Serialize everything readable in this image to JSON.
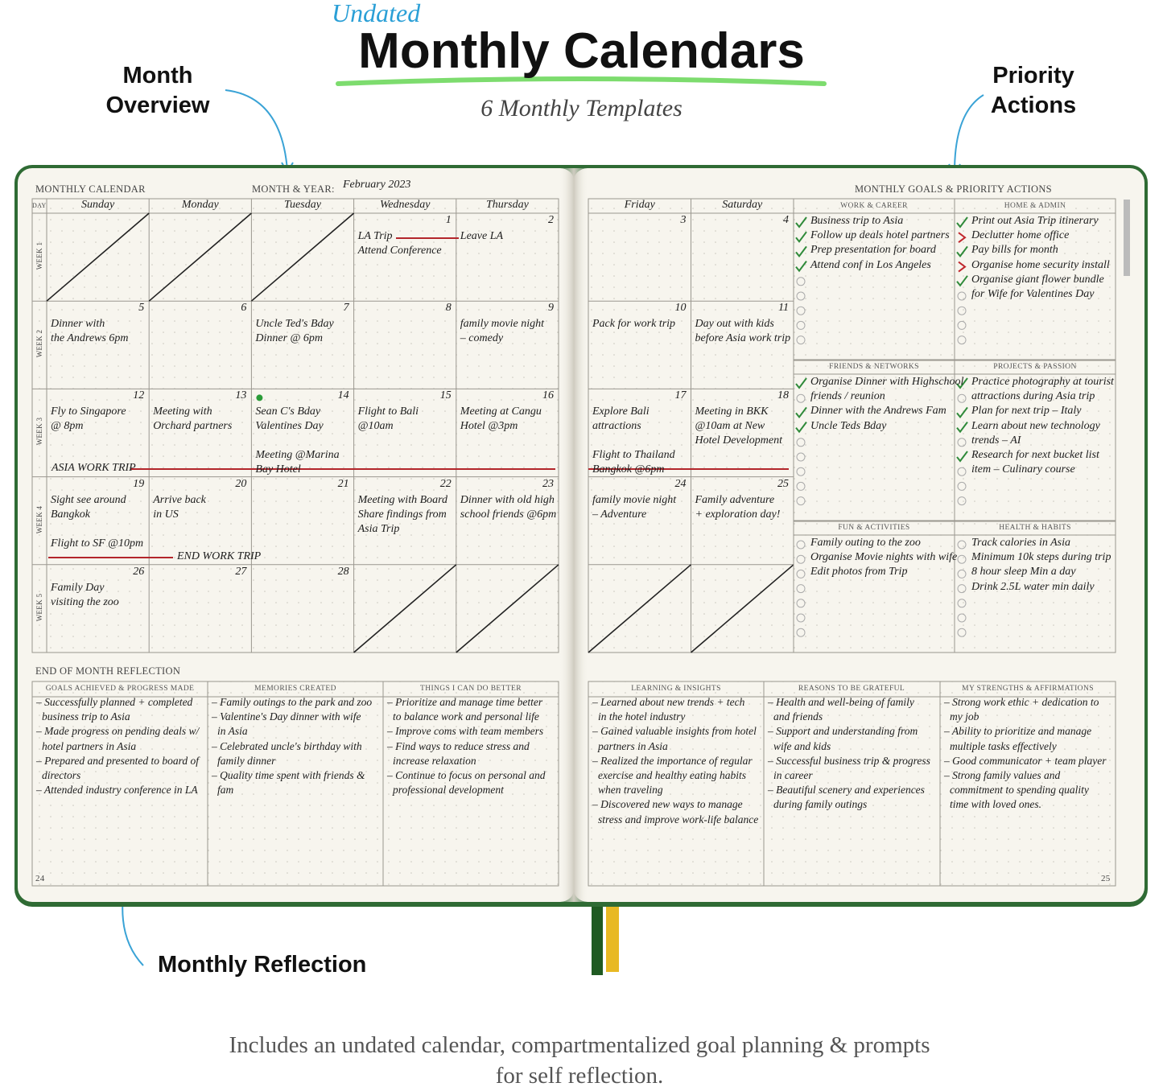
{
  "header": {
    "badge": "Undated",
    "title": "Monthly Calendars",
    "subtitle": "6 Monthly Templates"
  },
  "callouts": {
    "left": "Month Overview",
    "right": "Priority Actions",
    "bottom": "Monthly Reflection"
  },
  "footer": "Includes an undated calendar, compartmentalized goal planning & prompts for self reflection.",
  "left_page": {
    "label": "MONTHLY CALENDAR",
    "month_label": "MONTH & YEAR:",
    "month": "February 2023",
    "page_number": "24"
  },
  "right_page": {
    "label": "MONTHLY GOALS & PRIORITY ACTIONS",
    "page_number": "25"
  },
  "calendar": {
    "day_label": "DAY",
    "days": [
      "Sunday",
      "Monday",
      "Tuesday",
      "Wednesday",
      "Thursday",
      "Friday",
      "Saturday"
    ],
    "weeks": [
      {
        "label": "WEEK 1",
        "cells": [
          {
            "day": null,
            "notes": []
          },
          {
            "day": null,
            "notes": []
          },
          {
            "day": null,
            "notes": []
          },
          {
            "day": 1,
            "notes": [
              [
                "LA Trip",
                "Attend Conference"
              ]
            ]
          },
          {
            "day": 2,
            "notes": [
              [
                "Leave LA"
              ]
            ]
          },
          {
            "day": 3,
            "notes": []
          },
          {
            "day": 4,
            "notes": []
          }
        ]
      },
      {
        "label": "WEEK 2",
        "cells": [
          {
            "day": 5,
            "notes": [
              [
                "Dinner with",
                "the Andrews 6pm"
              ]
            ]
          },
          {
            "day": 6,
            "notes": []
          },
          {
            "day": 7,
            "notes": [
              [
                "Uncle Ted's Bday",
                "Dinner @ 6pm"
              ]
            ]
          },
          {
            "day": 8,
            "notes": []
          },
          {
            "day": 9,
            "notes": [
              [
                "family movie night",
                "– comedy"
              ]
            ]
          },
          {
            "day": 10,
            "notes": [
              [
                "Pack for work trip"
              ]
            ]
          },
          {
            "day": 11,
            "notes": [
              [
                "Day out with kids",
                "before Asia work trip"
              ]
            ]
          }
        ]
      },
      {
        "label": "WEEK 3",
        "cells": [
          {
            "day": 12,
            "notes": [
              [
                "Fly to Singapore",
                "@ 8pm"
              ]
            ]
          },
          {
            "day": 13,
            "notes": [
              [
                "Meeting with",
                "Orchard partners"
              ]
            ]
          },
          {
            "day": 14,
            "notes": [
              [
                "Sean C's Bday",
                "Valentines Day"
              ],
              [
                "Meeting @Marina",
                "Bay Hotel"
              ]
            ]
          },
          {
            "day": 15,
            "notes": [
              [
                "Flight to Bali",
                "@10am"
              ]
            ]
          },
          {
            "day": 16,
            "notes": [
              [
                "Meeting at Cangu",
                "Hotel @3pm"
              ]
            ]
          },
          {
            "day": 17,
            "notes": [
              [
                "Explore Bali",
                "attractions"
              ],
              [
                "Flight to Thailand",
                "Bangkok @6pm"
              ]
            ]
          },
          {
            "day": 18,
            "notes": [
              [
                "Meeting in BKK",
                "@10am at New",
                "Hotel Development"
              ]
            ]
          }
        ]
      },
      {
        "label": "WEEK 4",
        "cells": [
          {
            "day": 19,
            "notes": [
              [
                "Sight see around",
                "Bangkok"
              ],
              [
                "Flight to SF @10pm"
              ]
            ]
          },
          {
            "day": 20,
            "notes": [
              [
                "Arrive back",
                "in US"
              ]
            ]
          },
          {
            "day": 21,
            "notes": []
          },
          {
            "day": 22,
            "notes": [
              [
                "Meeting with Board",
                "Share findings from",
                "Asia Trip"
              ]
            ]
          },
          {
            "day": 23,
            "notes": [
              [
                "Dinner with old high",
                "school friends @6pm"
              ]
            ]
          },
          {
            "day": 24,
            "notes": [
              [
                "family movie night",
                "– Adventure"
              ]
            ]
          },
          {
            "day": 25,
            "notes": [
              [
                "Family adventure",
                "+ exploration day!"
              ]
            ]
          }
        ]
      },
      {
        "label": "WEEK 5",
        "cells": [
          {
            "day": 26,
            "notes": [
              [
                "Family Day",
                "visiting the zoo"
              ]
            ]
          },
          {
            "day": 27,
            "notes": []
          },
          {
            "day": 28,
            "notes": []
          },
          {
            "day": null,
            "notes": []
          },
          {
            "day": null,
            "notes": []
          },
          {
            "day": null,
            "notes": []
          },
          {
            "day": null,
            "notes": []
          }
        ]
      }
    ],
    "trips": [
      "ASIA WORK TRIP",
      "END WORK TRIP"
    ]
  },
  "goals": [
    {
      "title": "WORK & CAREER",
      "items": [
        {
          "text": "Business trip to Asia",
          "mark": "check"
        },
        {
          "text": "Follow up deals hotel partners",
          "mark": "check"
        },
        {
          "text": "Prep presentation for board",
          "mark": "check"
        },
        {
          "text": "Attend conf in Los Angeles",
          "mark": "check"
        }
      ]
    },
    {
      "title": "HOME & ADMIN",
      "items": [
        {
          "text": "Print out Asia Trip itinerary",
          "mark": "check"
        },
        {
          "text": "Declutter home office",
          "mark": "arrow"
        },
        {
          "text": "Pay bills for month",
          "mark": "check"
        },
        {
          "text": "Organise home security install",
          "mark": "arrow"
        },
        {
          "text": "Organise giant flower bundle",
          "mark": "check"
        },
        {
          "text": "for Wife for Valentines Day",
          "mark": "circle"
        }
      ]
    },
    {
      "title": "FRIENDS & NETWORKS",
      "items": [
        {
          "text": "Organise Dinner with Highschool",
          "mark": "check"
        },
        {
          "text": "friends / reunion",
          "mark": "circle"
        },
        {
          "text": "Dinner with the Andrews Fam",
          "mark": "check"
        },
        {
          "text": "Uncle Teds Bday",
          "mark": "check"
        }
      ]
    },
    {
      "title": "PROJECTS & PASSION",
      "items": [
        {
          "text": "Practice photography at tourist",
          "mark": "check"
        },
        {
          "text": "attractions during Asia trip",
          "mark": "circle"
        },
        {
          "text": "Plan for next trip – Italy",
          "mark": "check"
        },
        {
          "text": "Learn about new technology",
          "mark": "check"
        },
        {
          "text": "trends – AI",
          "mark": "circle"
        },
        {
          "text": "Research for next bucket list",
          "mark": "check"
        },
        {
          "text": "item – Culinary course",
          "mark": "circle"
        }
      ]
    },
    {
      "title": "FUN & ACTIVITIES",
      "items": [
        {
          "text": "Family outing to the zoo",
          "mark": "circle"
        },
        {
          "text": "Organise Movie nights with wife",
          "mark": "circle"
        },
        {
          "text": "Edit photos from Trip",
          "mark": "circle"
        }
      ]
    },
    {
      "title": "HEALTH & HABITS",
      "items": [
        {
          "text": "Track calories in Asia",
          "mark": "circle"
        },
        {
          "text": "Minimum 10k steps during trip",
          "mark": "circle"
        },
        {
          "text": "8 hour sleep Min a day",
          "mark": "circle"
        },
        {
          "text": "Drink 2.5L water min daily",
          "mark": "circle"
        }
      ]
    }
  ],
  "reflection": {
    "label": "END OF MONTH REFLECTION",
    "columns": [
      {
        "title": "GOALS ACHIEVED & PROGRESS MADE",
        "lines": [
          "– Successfully planned + completed",
          "business trip to Asia",
          "– Made progress on pending deals w/",
          "hotel partners in Asia",
          "– Prepared and presented to board of",
          "directors",
          "– Attended industry conference in LA"
        ]
      },
      {
        "title": "MEMORIES CREATED",
        "lines": [
          "– Family outings to the park and zoo",
          "– Valentine's Day dinner with wife",
          "in Asia",
          "– Celebrated uncle's birthday with",
          "family dinner",
          "– Quality time spent with friends &",
          "fam"
        ]
      },
      {
        "title": "THINGS I CAN DO BETTER",
        "lines": [
          "– Prioritize and manage time better",
          "to balance work and personal life",
          "– Improve coms with team members",
          "– Find ways to reduce stress and",
          "increase relaxation",
          "– Continue to focus on personal and",
          "professional development"
        ]
      },
      {
        "title": "LEARNING & INSIGHTS",
        "lines": [
          "– Learned about new trends + tech",
          "in the hotel industry",
          "– Gained valuable insights from hotel",
          "partners in Asia",
          "– Realized the importance of regular",
          "exercise and healthy eating habits",
          "when traveling",
          "– Discovered new ways to manage",
          "stress and improve work-life balance"
        ]
      },
      {
        "title": "REASONS TO BE GRATEFUL",
        "lines": [
          "– Health and well-being of family",
          "and friends",
          "– Support and understanding from",
          "wife and kids",
          "– Successful business trip & progress",
          "in career",
          "– Beautiful scenery and experiences",
          "during family outings"
        ]
      },
      {
        "title": "MY STRENGTHS & AFFIRMATIONS",
        "lines": [
          "– Strong work ethic + dedication to",
          "my job",
          "– Ability to prioritize and manage",
          "multiple tasks effectively",
          "– Good communicator + team player",
          "– Strong family values and",
          "commitment to spending quality",
          "time with loved ones."
        ]
      }
    ]
  }
}
